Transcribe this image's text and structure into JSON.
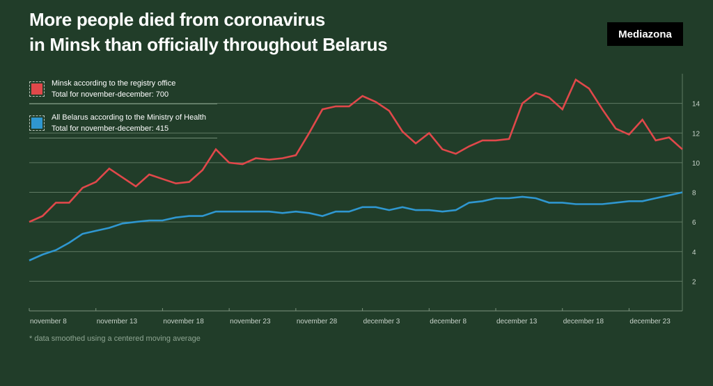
{
  "title_line1": "More people died from coronavirus",
  "title_line2": "in Minsk than officially throughout Belarus",
  "logo": "Mediazona",
  "footnote": "* data smoothed using a centered moving average",
  "legend": [
    {
      "label": "Minsk according to the registry office",
      "total": "Total for november-december: 700",
      "color": "#e0484a"
    },
    {
      "label": "All Belarus according to the Ministry of Health",
      "total": "Total for november-december: 415",
      "color": "#2f97d0"
    }
  ],
  "chart_data": {
    "type": "line",
    "title": "More people died from coronavirus in Minsk than officially throughout Belarus",
    "xlabel": "",
    "ylabel": "",
    "ylim": [
      0,
      16
    ],
    "yticks": [
      2,
      4,
      6,
      8,
      10,
      12,
      14
    ],
    "y_axis_side": "right",
    "grid": true,
    "legend_position": "top-left",
    "x_start": "november 8",
    "x_end": "december 27",
    "xtick_labels": [
      "november 8",
      "november 13",
      "november 18",
      "november 23",
      "november 28",
      "december 3",
      "december 8",
      "december 13",
      "december 18",
      "december 23"
    ],
    "xtick_index": [
      0,
      5,
      10,
      15,
      20,
      25,
      30,
      35,
      40,
      45
    ],
    "series": [
      {
        "name": "Minsk according to the registry office",
        "color": "#e0484a",
        "values": [
          6.0,
          6.4,
          7.3,
          7.3,
          8.3,
          8.7,
          9.6,
          9.0,
          8.4,
          9.2,
          8.9,
          8.6,
          8.7,
          9.5,
          10.9,
          10.0,
          9.9,
          10.3,
          10.2,
          10.3,
          10.5,
          12.0,
          13.6,
          13.8,
          13.8,
          14.5,
          14.1,
          13.5,
          12.1,
          11.3,
          12.0,
          10.9,
          10.6,
          11.1,
          11.5,
          11.5,
          11.6,
          14.0,
          14.7,
          14.4,
          13.6,
          15.6,
          15.0,
          13.6,
          12.3,
          11.9,
          12.9,
          11.5,
          11.7,
          10.9
        ]
      },
      {
        "name": "All Belarus according to the Ministry of Health",
        "color": "#2f97d0",
        "values": [
          3.4,
          3.8,
          4.1,
          4.6,
          5.2,
          5.4,
          5.6,
          5.9,
          6.0,
          6.1,
          6.1,
          6.3,
          6.4,
          6.4,
          6.7,
          6.7,
          6.7,
          6.7,
          6.7,
          6.6,
          6.7,
          6.6,
          6.4,
          6.7,
          6.7,
          7.0,
          7.0,
          6.8,
          7.0,
          6.8,
          6.8,
          6.7,
          6.8,
          7.3,
          7.4,
          7.6,
          7.6,
          7.7,
          7.6,
          7.3,
          7.3,
          7.2,
          7.2,
          7.2,
          7.3,
          7.4,
          7.4,
          7.6,
          7.8,
          8.0
        ]
      }
    ]
  }
}
